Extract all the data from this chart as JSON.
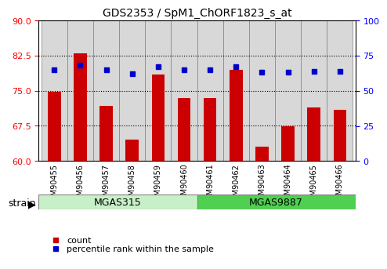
{
  "title": "GDS2353 / SpM1_ChORF1823_s_at",
  "samples": [
    "GSM90455",
    "GSM90456",
    "GSM90457",
    "GSM90458",
    "GSM90459",
    "GSM90460",
    "GSM90461",
    "GSM90462",
    "GSM90463",
    "GSM90464",
    "GSM90465",
    "GSM90466"
  ],
  "counts": [
    74.8,
    83.0,
    71.8,
    64.5,
    78.5,
    73.5,
    73.5,
    79.5,
    63.0,
    67.5,
    71.5,
    71.0
  ],
  "percentiles": [
    65,
    68,
    65,
    62,
    67,
    65,
    65,
    67,
    63,
    63,
    64,
    64
  ],
  "ylim_left": [
    60,
    90
  ],
  "ylim_right": [
    0,
    100
  ],
  "yticks_left": [
    60,
    67.5,
    75,
    82.5,
    90
  ],
  "yticks_right": [
    0,
    25,
    50,
    75,
    100
  ],
  "bar_color": "#cc0000",
  "dot_color": "#0000cc",
  "bg_color": "#ffffff",
  "tick_area_color": "#d8d8d8",
  "group1_color": "#c8f0c8",
  "group2_color": "#50d050",
  "group1_label": "MGAS315",
  "group2_label": "MGAS9887",
  "group1_samples": 6,
  "group2_samples": 6,
  "strain_label": "strain",
  "legend_count": "count",
  "legend_percentile": "percentile rank within the sample"
}
